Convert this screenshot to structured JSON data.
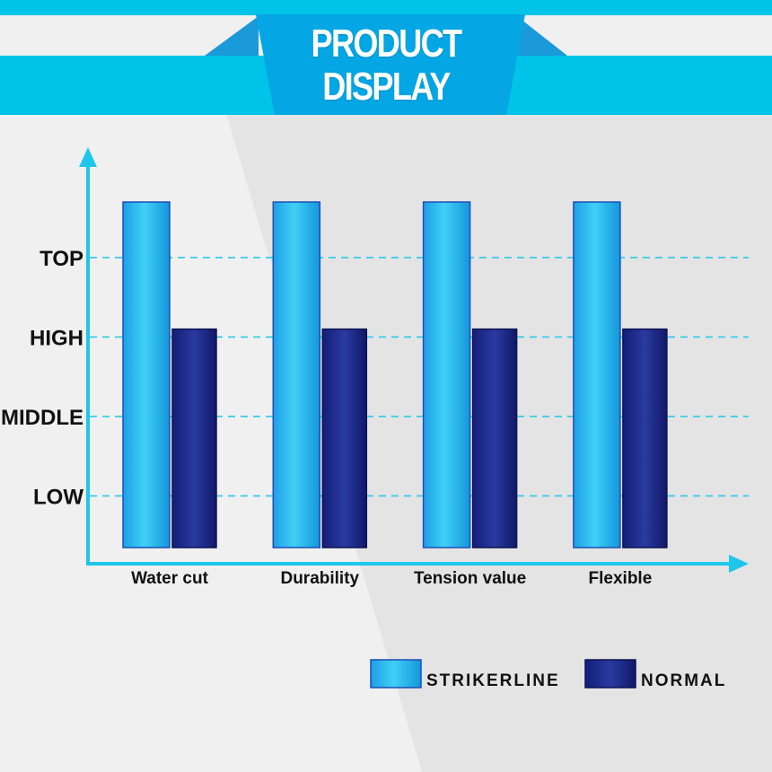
{
  "header": {
    "title_line1": "PRODUCT",
    "title_line2": "DISPLAY"
  },
  "colors": {
    "banner": "#00c3e8",
    "banner_tab": "#04a6e4",
    "axis": "#1ec6ea",
    "strikerline": "#1aa8e8",
    "normal": "#1c2a8c"
  },
  "chart_data": {
    "type": "bar",
    "categories": [
      "Water cut",
      "Durability",
      "Tension value",
      "Flexible"
    ],
    "y_levels": [
      "LOW",
      "MIDDLE",
      "HIGH",
      "TOP"
    ],
    "ylim": [
      0,
      4.35
    ],
    "grid": true,
    "legend_position": "bottom-right",
    "series": [
      {
        "name": "STRIKERLINE",
        "values": [
          4.35,
          4.35,
          4.35,
          4.35
        ]
      },
      {
        "name": "NORMAL",
        "values": [
          2.75,
          2.75,
          2.75,
          2.75
        ]
      }
    ]
  }
}
